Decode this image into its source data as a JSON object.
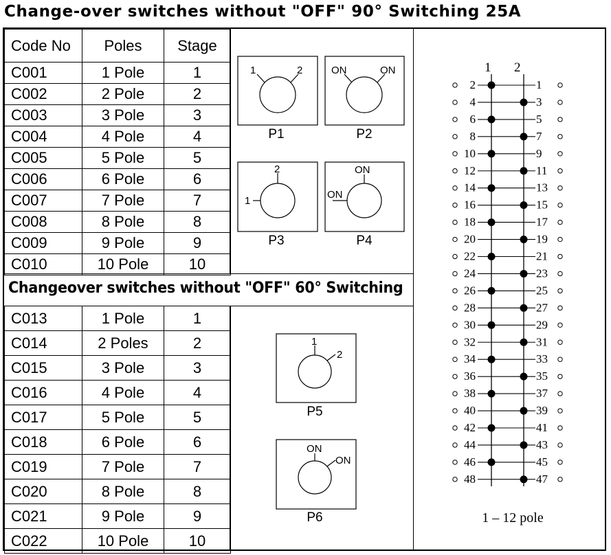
{
  "title": "Change-over switches without \"OFF\" 90° Switching 25A",
  "table1": {
    "headers": [
      "Code No",
      "Poles",
      "Stage"
    ],
    "rows": [
      [
        "C001",
        "1 Pole",
        "1"
      ],
      [
        "C002",
        "2 Pole",
        "2"
      ],
      [
        "C003",
        "3 Pole",
        "3"
      ],
      [
        "C004",
        "4 Pole",
        "4"
      ],
      [
        "C005",
        "5 Pole",
        "5"
      ],
      [
        "C006",
        "6 Pole",
        "6"
      ],
      [
        "C007",
        "7 Pole",
        "7"
      ],
      [
        "C008",
        "8 Pole",
        "8"
      ],
      [
        "C009",
        "9 Pole",
        "9"
      ],
      [
        "C010",
        "10 Pole",
        "10"
      ]
    ]
  },
  "subtitle": "Changeover switches without \"OFF\" 60° Switching",
  "table2": {
    "rows": [
      [
        "C013",
        "1 Pole",
        "1"
      ],
      [
        "C014",
        "2 Poles",
        "2"
      ],
      [
        "C015",
        "3 Pole",
        "3"
      ],
      [
        "C016",
        "4 Pole",
        "4"
      ],
      [
        "C017",
        "5 Pole",
        "5"
      ],
      [
        "C018",
        "6 Pole",
        "6"
      ],
      [
        "C019",
        "7 Pole",
        "7"
      ],
      [
        "C020",
        "8 Pole",
        "8"
      ],
      [
        "C021",
        "9 Pole",
        "9"
      ],
      [
        "C022",
        "10 Pole",
        "10"
      ]
    ]
  },
  "diagrams": {
    "p1": {
      "label": "P1",
      "a": "1",
      "b": "2"
    },
    "p2": {
      "label": "P2",
      "a": "ON",
      "b": "ON"
    },
    "p3": {
      "label": "P3",
      "a": "2",
      "b": "1"
    },
    "p4": {
      "label": "P4",
      "a": "ON",
      "b": "ON"
    },
    "p5": {
      "label": "P5",
      "a": "1",
      "b": "2"
    },
    "p6": {
      "label": "P6",
      "a": "ON",
      "b": "ON"
    }
  },
  "contact_diagram": {
    "header_left": "1",
    "header_right": "2",
    "left_numbers": [
      "2",
      "4",
      "6",
      "8",
      "10",
      "12",
      "14",
      "16",
      "18",
      "20",
      "22",
      "24",
      "26",
      "28",
      "30",
      "32",
      "34",
      "36",
      "38",
      "40",
      "42",
      "44",
      "46",
      "48"
    ],
    "right_numbers": [
      "1",
      "3",
      "5",
      "7",
      "9",
      "11",
      "13",
      "15",
      "17",
      "19",
      "21",
      "23",
      "25",
      "27",
      "29",
      "31",
      "33",
      "35",
      "37",
      "39",
      "41",
      "43",
      "45",
      "47"
    ],
    "caption": "1 – 12 pole"
  }
}
